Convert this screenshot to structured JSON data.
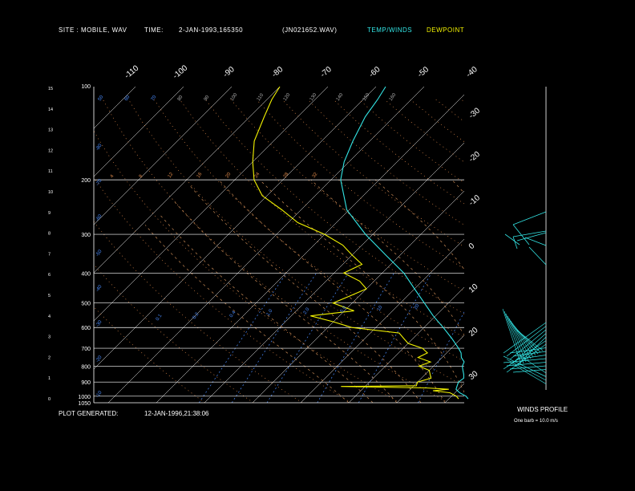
{
  "header": {
    "site": "SITE :  MOBILE, WAV",
    "time": "TIME:",
    "datetime": "2-JAN-1993,165350",
    "file": "(JN021652.WAV)",
    "temp_winds": "TEMP/WINDS",
    "dewpoint": "DEWPOINT"
  },
  "footer": {
    "generated_label": "PLOT GENERATED:",
    "generated_value": "12-JAN-1996,21:38:06"
  },
  "winds": {
    "title": "WINDS PROFILE",
    "note": "One barb = 10.0 m/s"
  },
  "colors": {
    "temperature": "#33e6e6",
    "dewpoint": "#f2f200",
    "isobar": "#ffffff",
    "isotherm": "#ffffff",
    "mixing_ratio": "#4a8cff",
    "dry_adiabat": "#e08a4a",
    "moist_adiabat": "#c88a55"
  },
  "chart_data": {
    "type": "line",
    "pressure_levels": [
      {
        "p": 400,
        "label": "400"
      },
      {
        "p": 500,
        "label": "500"
      },
      {
        "p": 600,
        "label": "600"
      },
      {
        "p": 700,
        "label": "700"
      },
      {
        "p": 800,
        "label": "800"
      },
      {
        "p": 900,
        "label": "900"
      },
      {
        "p": 1000,
        "label": "1000"
      },
      {
        "p": 1050,
        "label": "1050"
      }
    ],
    "pressure_lines": [
      {
        "p": 200,
        "label": "200"
      },
      {
        "p": 300,
        "label": "300"
      }
    ],
    "top_label": "100",
    "height_ticks": [
      "0",
      "1",
      "2",
      "3",
      "4",
      "5",
      "6",
      "7",
      "8",
      "9",
      "10",
      "11",
      "12",
      "13",
      "14",
      "15"
    ],
    "isotherm_top_labels": [
      "-110",
      "-100",
      "-90",
      "-80",
      "-70",
      "-60",
      "-50",
      "-40"
    ],
    "isotherm_right_labels": [
      "-30",
      "-20",
      "-10",
      "0",
      "10",
      "20",
      "30"
    ],
    "mixing_ratio_labels": [
      "0.1",
      "0.2",
      "0.4",
      "1.0",
      "2.0",
      "5.0",
      "10",
      "20"
    ],
    "theta_labels_top": [
      "50",
      "60",
      "70",
      "80",
      "90",
      "100",
      "110",
      "120",
      "130",
      "140",
      "150",
      "160"
    ],
    "theta_labels_mid": [
      "4",
      "8",
      "12",
      "16",
      "20",
      "24",
      "28",
      "32"
    ],
    "left_edge_labels": [
      "-80",
      "-70",
      "-60",
      "-50",
      "-40",
      "-30",
      "-20",
      "-10"
    ],
    "series": [
      {
        "name": "TEMP/WINDS",
        "points": [
          [
            1020,
            14.0
          ],
          [
            1000,
            13.0
          ],
          [
            975,
            11.0
          ],
          [
            950,
            9.5
          ],
          [
            925,
            9.0
          ],
          [
            900,
            8.5
          ],
          [
            875,
            8.8
          ],
          [
            850,
            8.0
          ],
          [
            825,
            7.0
          ],
          [
            800,
            6.0
          ],
          [
            775,
            5.5
          ],
          [
            750,
            4.0
          ],
          [
            725,
            3.0
          ],
          [
            700,
            1.5
          ],
          [
            650,
            -2.0
          ],
          [
            600,
            -6.0
          ],
          [
            550,
            -10.5
          ],
          [
            500,
            -15.0
          ],
          [
            450,
            -20.0
          ],
          [
            400,
            -25.5
          ],
          [
            350,
            -33.0
          ],
          [
            300,
            -41.5
          ],
          [
            250,
            -50.5
          ],
          [
            200,
            -58.0
          ],
          [
            175,
            -61.0
          ],
          [
            150,
            -63.5
          ],
          [
            125,
            -66.0
          ],
          [
            110,
            -67.0
          ],
          [
            100,
            -68.0
          ]
        ]
      },
      {
        "name": "DEWPOINT",
        "points": [
          [
            1020,
            12.0
          ],
          [
            1000,
            11.0
          ],
          [
            975,
            9.0
          ],
          [
            960,
            5.0
          ],
          [
            950,
            8.0
          ],
          [
            940,
            3.0
          ],
          [
            930,
            -15.0
          ],
          [
            925,
            0.5
          ],
          [
            900,
            0.0
          ],
          [
            875,
            2.0
          ],
          [
            850,
            1.0
          ],
          [
            825,
            0.0
          ],
          [
            800,
            -3.0
          ],
          [
            775,
            -1.5
          ],
          [
            750,
            -5.0
          ],
          [
            725,
            -4.0
          ],
          [
            700,
            -6.0
          ],
          [
            675,
            -10.0
          ],
          [
            650,
            -12.0
          ],
          [
            625,
            -14.0
          ],
          [
            600,
            -25.0
          ],
          [
            575,
            -30.0
          ],
          [
            550,
            -36.0
          ],
          [
            530,
            -28.0
          ],
          [
            500,
            -34.0
          ],
          [
            475,
            -32.0
          ],
          [
            450,
            -30.0
          ],
          [
            425,
            -33.0
          ],
          [
            400,
            -38.0
          ],
          [
            375,
            -36.0
          ],
          [
            350,
            -40.0
          ],
          [
            325,
            -44.0
          ],
          [
            300,
            -50.0
          ],
          [
            275,
            -58.0
          ],
          [
            250,
            -64.0
          ],
          [
            225,
            -71.0
          ],
          [
            200,
            -76.0
          ],
          [
            175,
            -80.0
          ],
          [
            150,
            -84.0
          ],
          [
            125,
            -87.0
          ],
          [
            110,
            -89.0
          ],
          [
            100,
            -90.0
          ]
        ]
      }
    ]
  }
}
